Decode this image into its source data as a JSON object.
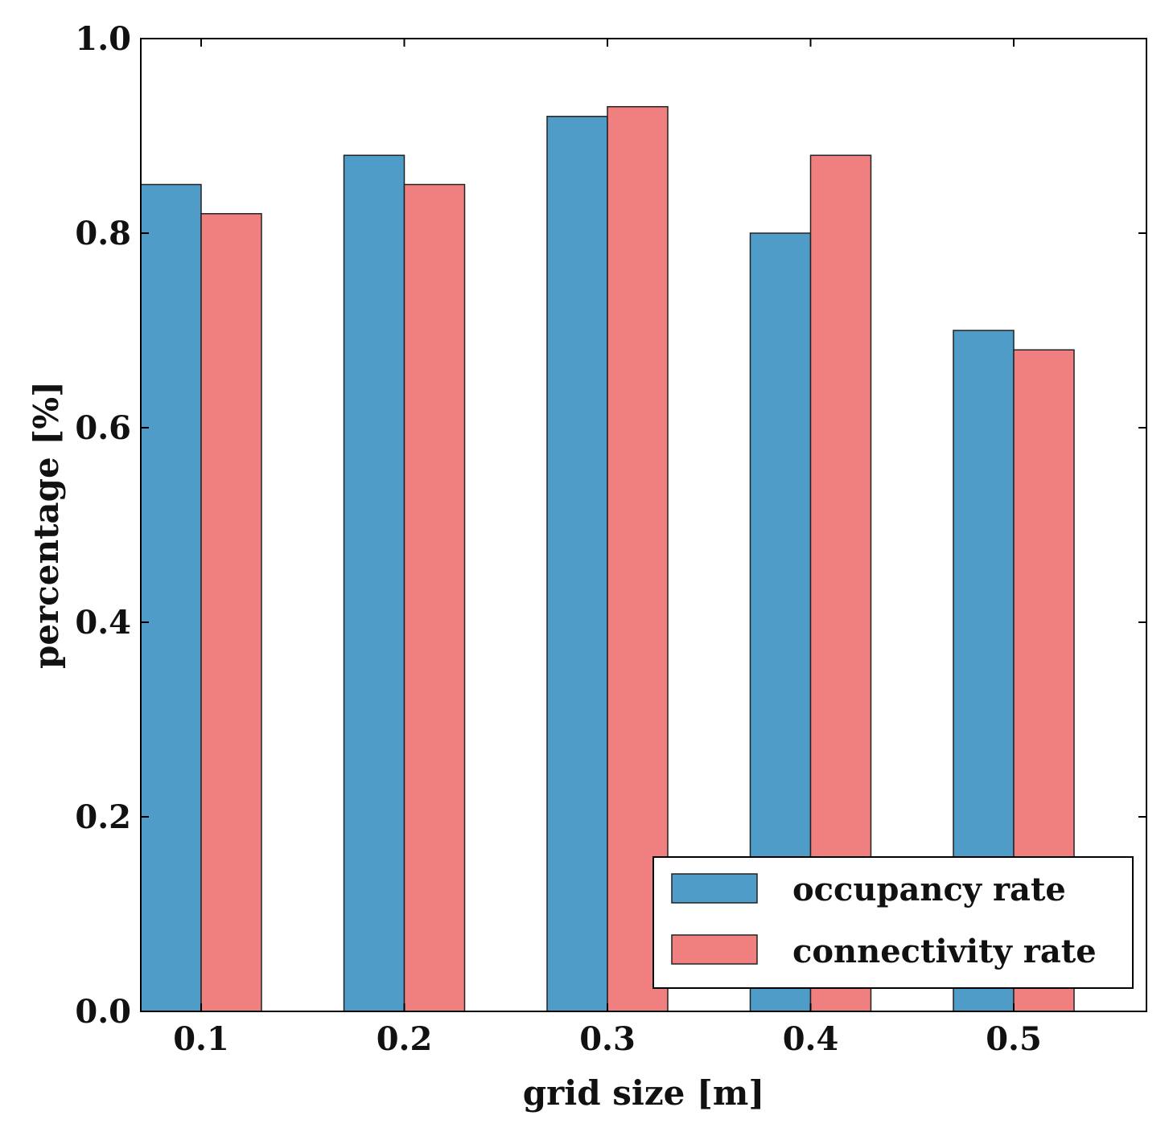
{
  "chart_data": {
    "type": "bar",
    "title": "",
    "xlabel": "grid size [m]",
    "ylabel": "percentage [%]",
    "categories": [
      "0.1",
      "0.2",
      "0.3",
      "0.4",
      "0.5"
    ],
    "series": [
      {
        "name": "occupancy rate",
        "color": "#4f9cc8",
        "values": [
          0.85,
          0.88,
          0.92,
          0.8,
          0.7
        ]
      },
      {
        "name": "connectivity rate",
        "color": "#f07f7f",
        "values": [
          0.82,
          0.85,
          0.93,
          0.88,
          0.68
        ]
      }
    ],
    "ylim": [
      0,
      1.0
    ],
    "yticks": [
      "0.0",
      "0.2",
      "0.4",
      "0.6",
      "0.8",
      "1.0"
    ],
    "grid": false,
    "legend_position": "bottom-right"
  }
}
